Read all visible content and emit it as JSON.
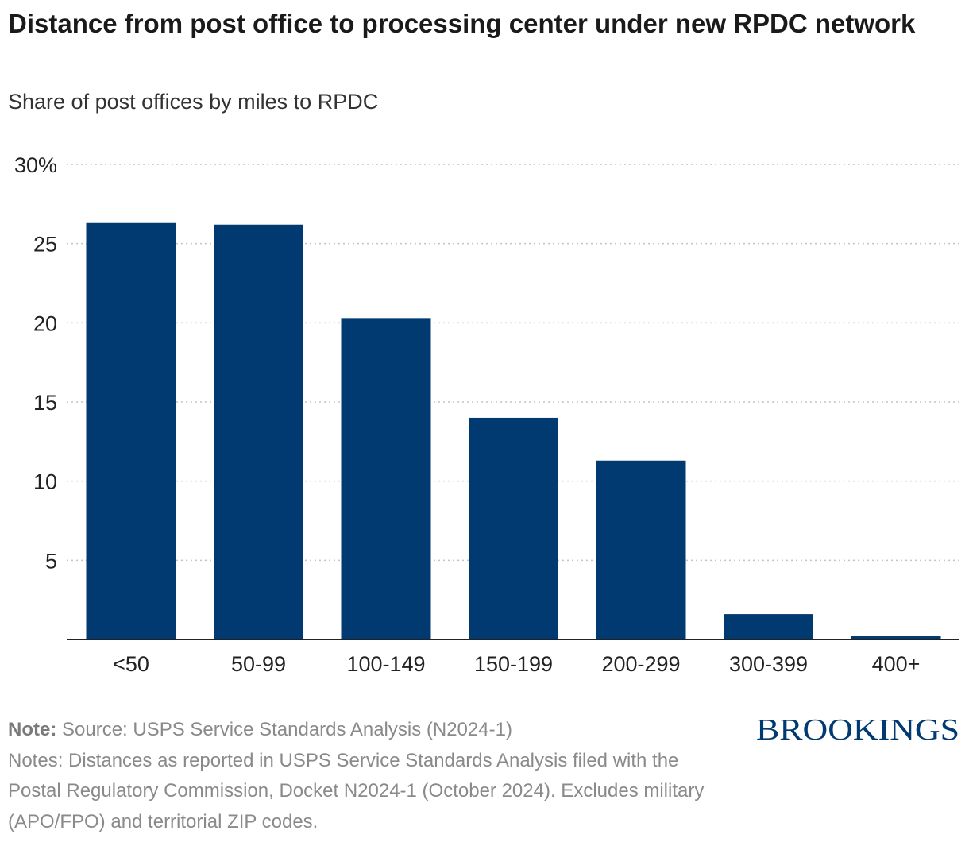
{
  "header": {
    "title": "Distance from post office to processing center under new RPDC network",
    "subtitle": "Share of post offices by miles to RPDC"
  },
  "chart_data": {
    "type": "bar",
    "categories": [
      "<50",
      "50-99",
      "100-149",
      "150-199",
      "200-299",
      "300-399",
      "400+"
    ],
    "values": [
      26.3,
      26.2,
      20.3,
      14.0,
      11.3,
      1.6,
      0.2
    ],
    "ylim": [
      0,
      30
    ],
    "y_ticks": [
      5,
      10,
      15,
      20,
      25,
      30
    ],
    "y_tick_labels": [
      "5",
      "10",
      "15",
      "20",
      "25",
      "30%"
    ],
    "grid": true,
    "bar_color": "#003a70"
  },
  "footer": {
    "note_label": "Note:",
    "source_text": "Source: USPS Service Standards Analysis (N2024-1)",
    "notes_text": "Notes: Distances as reported in USPS Service Standards Analysis filed with the Postal Regulatory Commission, Docket N2024-1 (October 2024). Excludes military (APO/FPO) and territorial ZIP codes."
  },
  "branding": {
    "logo_text": "BROOKINGS",
    "logo_color": "#003a70"
  }
}
